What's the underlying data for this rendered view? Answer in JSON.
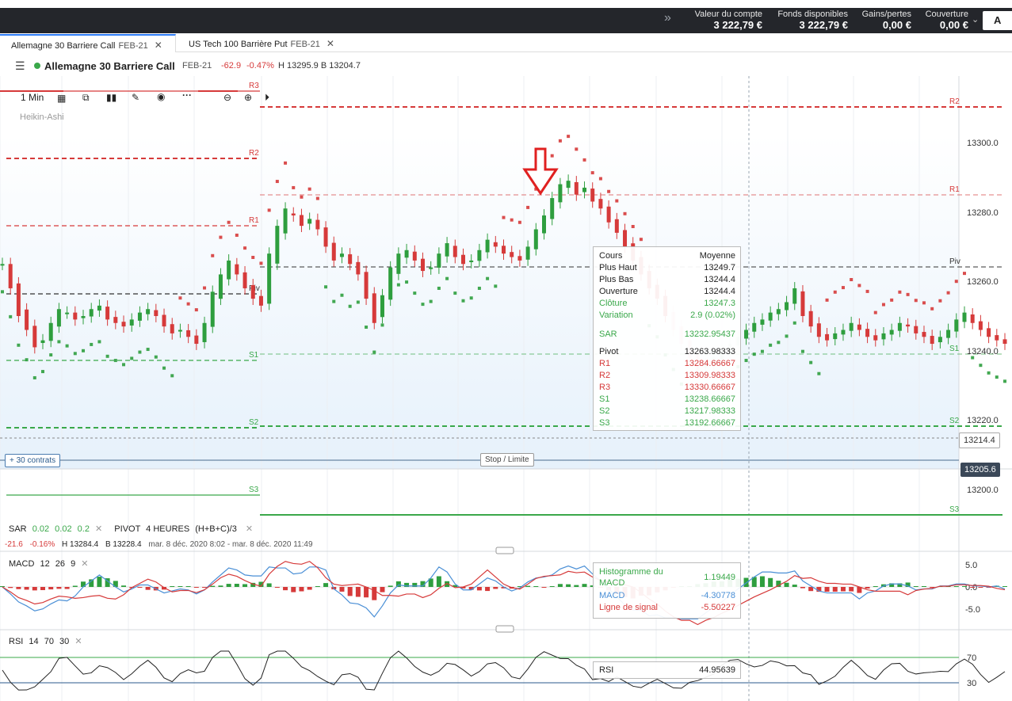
{
  "account": {
    "items": [
      {
        "label": "Valeur du compte",
        "value": "3 222,79 €"
      },
      {
        "label": "Fonds disponibles",
        "value": "3 222,79 €"
      },
      {
        "label": "Gains/pertes",
        "value": "0,00 €"
      },
      {
        "label": "Couverture",
        "value": "0,00 €"
      }
    ],
    "button_label": "A"
  },
  "tabs": [
    {
      "label": "Allemagne 30 Barriere Call",
      "sub": "FEB-21"
    },
    {
      "label": "US Tech 100 Barrière Put",
      "sub": "FEB-21"
    }
  ],
  "instrument": {
    "name": "Allemagne 30 Barriere Call",
    "expiry": "FEB-21",
    "change": "-62.9",
    "change_pct": "-0.47%",
    "high_low": "H 13295.9 B 13204.7"
  },
  "toolbar": {
    "interval": "1 Min",
    "chart_style": "Heikin-Ashi"
  },
  "price_axis": [
    "13300.0",
    "13280.0",
    "13260.0",
    "13240.0",
    "13220.0",
    "13200.0"
  ],
  "price_badges": {
    "dashed_level": "13214.4",
    "current": "13205.6"
  },
  "order_controls": {
    "contracts": "+ 30 contrats",
    "stop_limit": "Stop / Limite"
  },
  "pivot_labels_left": [
    "R3",
    "R2",
    "R1",
    "Piv",
    "S1",
    "S2",
    "S3"
  ],
  "pivot_labels_right": [
    "R2",
    "R1",
    "Piv",
    "S1",
    "S2",
    "S3"
  ],
  "tooltip": {
    "header_left": "Cours",
    "header_right": "Moyenne",
    "rows": [
      {
        "k": "Plus Haut",
        "v": "13249.7"
      },
      {
        "k": "Plus Bas",
        "v": "13244.4"
      },
      {
        "k": "Ouverture",
        "v": "13244.4"
      },
      {
        "k": "Clôture",
        "v": "13247.3"
      },
      {
        "k": "Variation",
        "v": "2.9 (0.02%)"
      },
      {
        "k": "SAR",
        "v": "13232.95437"
      },
      {
        "k": "Pivot",
        "v": "13263.98333"
      },
      {
        "k": "R1",
        "v": "13284.66667"
      },
      {
        "k": "R2",
        "v": "13309.98333"
      },
      {
        "k": "R3",
        "v": "13330.66667"
      },
      {
        "k": "S1",
        "v": "13238.66667"
      },
      {
        "k": "S2",
        "v": "13217.98333"
      },
      {
        "k": "S3",
        "v": "13192.66667"
      }
    ]
  },
  "indicators": {
    "sar": {
      "name": "SAR",
      "params": [
        "0.02",
        "0.02",
        "0.2"
      ]
    },
    "pivot": {
      "name": "PIVOT",
      "params": "4 HEURES",
      "formula": "(H+B+C)/3"
    },
    "summary": {
      "change": "-21.6",
      "pct": "-0.16%",
      "high": "H 13284.4",
      "low": "B 13228.4",
      "range": "mar. 8 déc. 2020 8:02 - mar. 8 déc. 2020 11:49"
    },
    "macd": {
      "name": "MACD",
      "params": [
        "12",
        "26",
        "9"
      ],
      "axis": [
        "5.0",
        "0.0",
        "-5.0"
      ]
    },
    "rsi": {
      "name": "RSI",
      "params": [
        "14",
        "70",
        "30"
      ],
      "axis": [
        "70",
        "30"
      ]
    }
  },
  "macd_tooltip": {
    "hist_label": "Histogramme du MACD",
    "hist_value": "1.19449",
    "macd_label": "MACD",
    "macd_value": "-4.30778",
    "signal_label": "Ligne de signal",
    "signal_value": "-5.50227"
  },
  "rsi_tooltip": {
    "label": "RSI",
    "value": "44.95639"
  },
  "colors": {
    "up": "#2e9e3e",
    "down": "#d63a3a",
    "resistance": "#d63a3a",
    "support": "#3aa84a",
    "macd": "#4a8fd6",
    "signal": "#d63a3a"
  }
}
